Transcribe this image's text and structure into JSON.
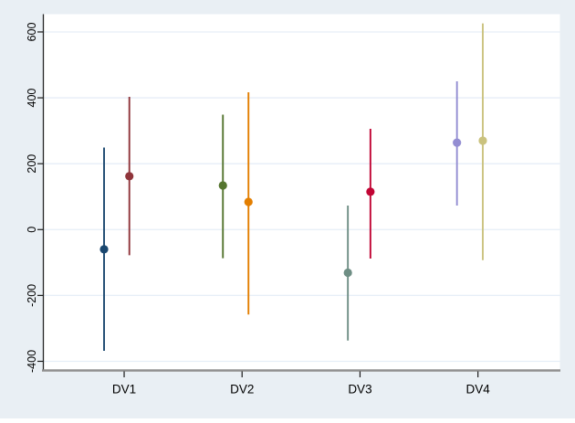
{
  "figure": {
    "background_color": "#E9EFF4",
    "plot_background_color": "#FFFFFF",
    "grid_color": "#E6EEF7",
    "y_axis_line_color": "#262626",
    "x_axis_line_color": "#8F8F8F",
    "tick_mark_color": "#1A1A1A",
    "label_color": "#000000"
  },
  "chart_data": {
    "type": "scatter",
    "subtype": "coefficient-plot-with-ci",
    "title": "",
    "xlabel": "",
    "ylabel": "",
    "categories": [
      "DV1",
      "DV2",
      "DV3",
      "DV4"
    ],
    "y_ticks": [
      600,
      400,
      200,
      0,
      -200,
      -400
    ],
    "y_tick_labels": [
      "600",
      "400",
      "200",
      "0",
      "-200",
      "-400"
    ],
    "ylim": [
      -425,
      654
    ],
    "grid": "horizontal",
    "legend_position": "none",
    "points": [
      {
        "group": "DV1",
        "series": 1,
        "color_name": "navy",
        "color": "#1A476F",
        "dx": -22.0,
        "estimate": -60,
        "ci_low": -368,
        "ci_high": 249
      },
      {
        "group": "DV1",
        "series": 2,
        "color_name": "maroon",
        "color": "#90353B",
        "dx": 5.7,
        "estimate": 162,
        "ci_low": -78,
        "ci_high": 403
      },
      {
        "group": "DV2",
        "series": 1,
        "color_name": "forest-green",
        "color": "#55752F",
        "dx": -21.0,
        "estimate": 134,
        "ci_low": -87,
        "ci_high": 349
      },
      {
        "group": "DV2",
        "series": 2,
        "color_name": "dark-orange",
        "color": "#E37E00",
        "dx": 7.0,
        "estimate": 84,
        "ci_low": -258,
        "ci_high": 417
      },
      {
        "group": "DV3",
        "series": 1,
        "color_name": "teal",
        "color": "#6E8E84",
        "dx": -13.3,
        "estimate": -131,
        "ci_low": -337,
        "ci_high": 73
      },
      {
        "group": "DV3",
        "series": 2,
        "color_name": "cranberry",
        "color": "#C10534",
        "dx": 11.4,
        "estimate": 115,
        "ci_low": -88,
        "ci_high": 306
      },
      {
        "group": "DV4",
        "series": 1,
        "color_name": "lavender",
        "color": "#938DD2",
        "dx": -23.0,
        "estimate": 264,
        "ci_low": 73,
        "ci_high": 450
      },
      {
        "group": "DV4",
        "series": 2,
        "color_name": "khaki",
        "color": "#CAC27E",
        "dx": 5.3,
        "estimate": 270,
        "ci_low": -93,
        "ci_high": 626
      }
    ]
  }
}
